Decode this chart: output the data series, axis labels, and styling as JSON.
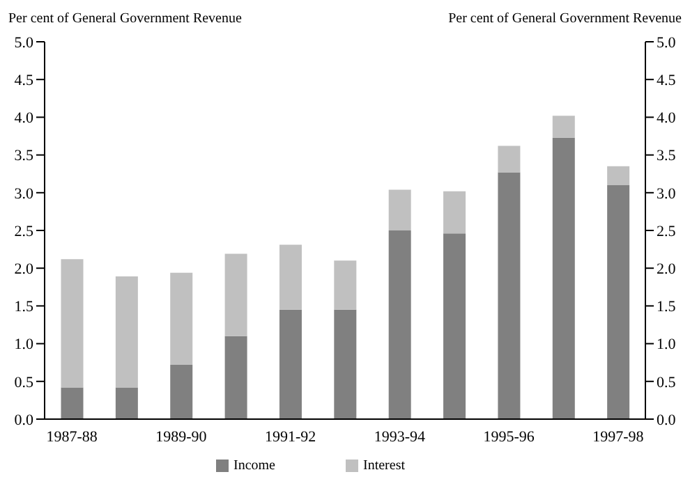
{
  "chart_data": {
    "type": "bar",
    "stacked": true,
    "ylabel": "Per cent of General Government Revenue",
    "y2label": "Per cent of General Government Revenue",
    "categories": [
      "1987-88",
      null,
      "1989-90",
      null,
      "1991-92",
      null,
      "1993-94",
      null,
      "1995-96",
      null,
      "1997-98"
    ],
    "series": [
      {
        "name": "Income",
        "color": "#808080",
        "values": [
          0.42,
          0.42,
          0.72,
          1.1,
          1.45,
          1.45,
          2.5,
          2.46,
          3.27,
          3.73,
          3.1
        ]
      },
      {
        "name": "Interest",
        "color": "#c0c0c0",
        "values": [
          1.7,
          1.47,
          1.22,
          1.09,
          0.86,
          0.65,
          0.54,
          0.56,
          0.35,
          0.29,
          0.25
        ]
      }
    ],
    "ylim": [
      0,
      5
    ],
    "yticks": [
      {
        "value": 0,
        "label": "0.0"
      },
      0.5,
      {
        "value": 1,
        "label": "1.0"
      },
      1.5,
      {
        "value": 2,
        "label": "2.0"
      },
      2.5,
      {
        "value": 3,
        "label": "3.0"
      },
      3.5,
      {
        "value": 4,
        "label": "4.0"
      },
      4.5,
      {
        "value": 5,
        "label": "5.0"
      }
    ],
    "y2lim": [
      0,
      5
    ],
    "y2ticks": [
      {
        "value": 0,
        "label": "0.0"
      },
      0.5,
      {
        "value": 1,
        "label": "1.0"
      },
      1.5,
      {
        "value": 2,
        "label": "2.0"
      },
      2.5,
      {
        "value": 3,
        "label": "3.0"
      },
      3.5,
      {
        "value": 4,
        "label": "4.0"
      },
      4.5,
      {
        "value": 5,
        "label": "5.0"
      }
    ],
    "grid": false,
    "legend": "bottom"
  }
}
